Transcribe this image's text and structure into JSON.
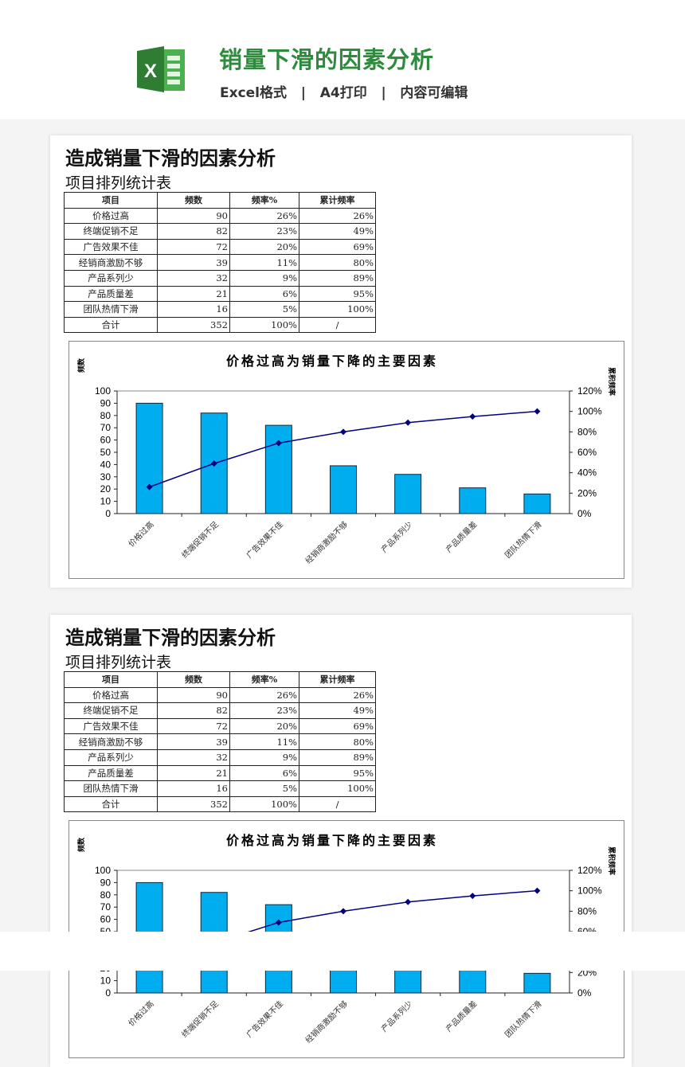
{
  "header": {
    "title": "销量下滑的因素分析",
    "subtitle": "Excel格式   |   A4打印   |   内容可编辑",
    "logo_icon": "excel-icon",
    "brand_color": "#2e8b3e"
  },
  "sheet": {
    "title": "造成销量下滑的因素分析",
    "subtitle": "项目排列统计表",
    "table": {
      "headers": [
        "项目",
        "频数",
        "频率%",
        "累计频率"
      ],
      "rows": [
        [
          "价格过高",
          "90",
          "26%",
          "26%"
        ],
        [
          "终端促销不足",
          "82",
          "23%",
          "49%"
        ],
        [
          "广告效果不佳",
          "72",
          "20%",
          "69%"
        ],
        [
          "经销商激励不够",
          "39",
          "11%",
          "80%"
        ],
        [
          "产品系列少",
          "32",
          "9%",
          "89%"
        ],
        [
          "产品质量差",
          "21",
          "6%",
          "95%"
        ],
        [
          "团队热情下滑",
          "16",
          "5%",
          "100%"
        ],
        [
          "合计",
          "352",
          "100%",
          "/"
        ]
      ]
    }
  },
  "chart_data": {
    "type": "bar+line",
    "title": "价格过高为销量下降的主要因素",
    "ylabel": "频数",
    "y2label": "累积频率",
    "categories": [
      "价格过高",
      "终端促销不足",
      "广告效果不佳",
      "经销商激励不够",
      "产品系列少",
      "产品质量差",
      "团队热情下滑"
    ],
    "series": [
      {
        "type": "bar",
        "axis": "left",
        "values": [
          90,
          82,
          72,
          39,
          32,
          21,
          16
        ],
        "color": "#00aeef"
      },
      {
        "type": "line",
        "axis": "right",
        "values": [
          26,
          49,
          69,
          80,
          89,
          95,
          100
        ],
        "color": "#000080"
      }
    ],
    "ylim": [
      0,
      100
    ],
    "yticks": [
      "0",
      "10",
      "20",
      "30",
      "40",
      "50",
      "60",
      "70",
      "80",
      "90",
      "100"
    ],
    "y2lim": [
      0,
      120
    ],
    "y2ticks": [
      "0%",
      "20%",
      "40%",
      "60%",
      "80%",
      "100%",
      "120%"
    ],
    "grid": false
  }
}
